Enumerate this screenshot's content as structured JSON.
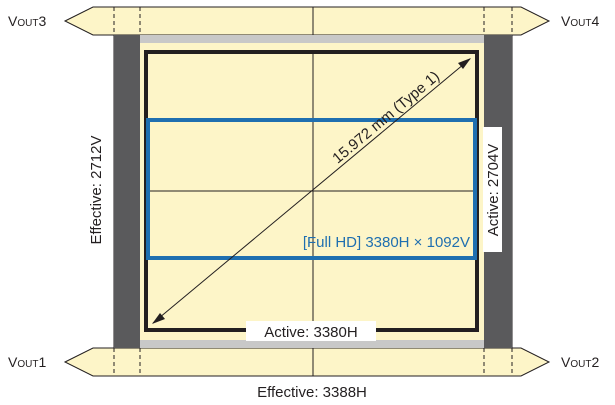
{
  "outputs": {
    "vout3": {
      "prefix": "V",
      "sub": "OUT",
      "num": "3"
    },
    "vout4": {
      "prefix": "V",
      "sub": "OUT",
      "num": "4"
    },
    "vout1": {
      "prefix": "V",
      "sub": "OUT",
      "num": "1"
    },
    "vout2": {
      "prefix": "V",
      "sub": "OUT",
      "num": "2"
    }
  },
  "labels": {
    "effective_v": "Effective: 2712V",
    "active_v": "Active: 2704V",
    "active_h": "Active: 3380H",
    "effective_h": "Effective: 3388H",
    "diagonal": "15.972 mm (Type 1)",
    "full_hd": "[Full HD] 3380H × 1092V"
  },
  "colors": {
    "sensor_fill": "#fdf5c8",
    "gray_band": "#5a5a5c",
    "light_band": "#c8c8c8",
    "border": "#231f20",
    "full_hd_blue": "#1f6fb0"
  }
}
